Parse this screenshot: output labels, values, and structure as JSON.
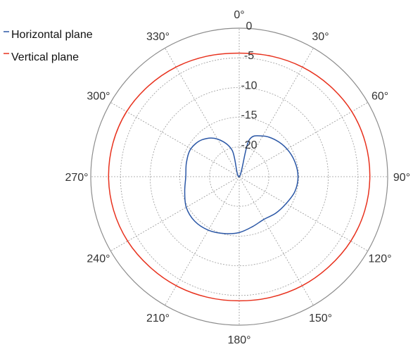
{
  "chart_data": {
    "type": "polar-line",
    "title": "",
    "angle_ticks": [
      "0°",
      "30°",
      "60°",
      "90°",
      "120°",
      "150°",
      "180°",
      "210°",
      "240°",
      "270°",
      "300°",
      "330°"
    ],
    "angle_tick_values": [
      0,
      30,
      60,
      90,
      120,
      150,
      180,
      210,
      240,
      270,
      300,
      330
    ],
    "radial_ticks": [
      "0",
      "-5",
      "-10",
      "-15",
      "-20"
    ],
    "radial_tick_values": [
      0,
      -5,
      -10,
      -15,
      -20
    ],
    "rlim": [
      -25,
      0
    ],
    "grid": true,
    "legend_position": "top-left",
    "series": [
      {
        "name": "Horizontal plane",
        "color": "#2b57a6",
        "theta": [
          0,
          15,
          30,
          45,
          60,
          75,
          90,
          105,
          120,
          135,
          150,
          165,
          180,
          195,
          210,
          225,
          240,
          255,
          270,
          285,
          300,
          315,
          330,
          345,
          360
        ],
        "r": [
          -25,
          -18.7,
          -17.1,
          -16.3,
          -15.7,
          -15.3,
          -15.1,
          -15.3,
          -15.9,
          -16.3,
          -16.7,
          -16.3,
          -15.6,
          -15.1,
          -14.6,
          -14.4,
          -14.7,
          -15.5,
          -16.0,
          -15.8,
          -15.6,
          -16.2,
          -17.7,
          -20.4,
          -25
        ]
      },
      {
        "name": "Vertical plane",
        "color": "#e8321e",
        "theta": [
          0,
          15,
          30,
          45,
          60,
          75,
          90,
          105,
          120,
          135,
          150,
          165,
          180,
          195,
          210,
          225,
          240,
          255,
          270,
          285,
          300,
          315,
          330,
          345,
          360
        ],
        "r": [
          -4.2,
          -4.0,
          -3.7,
          -3.4,
          -3.1,
          -3.0,
          -3.0,
          -3.1,
          -3.3,
          -3.6,
          -3.8,
          -4.0,
          -4.1,
          -4.0,
          -3.8,
          -3.6,
          -3.3,
          -3.1,
          -3.0,
          -3.0,
          -3.1,
          -3.4,
          -3.7,
          -4.0,
          -4.2
        ]
      }
    ]
  }
}
